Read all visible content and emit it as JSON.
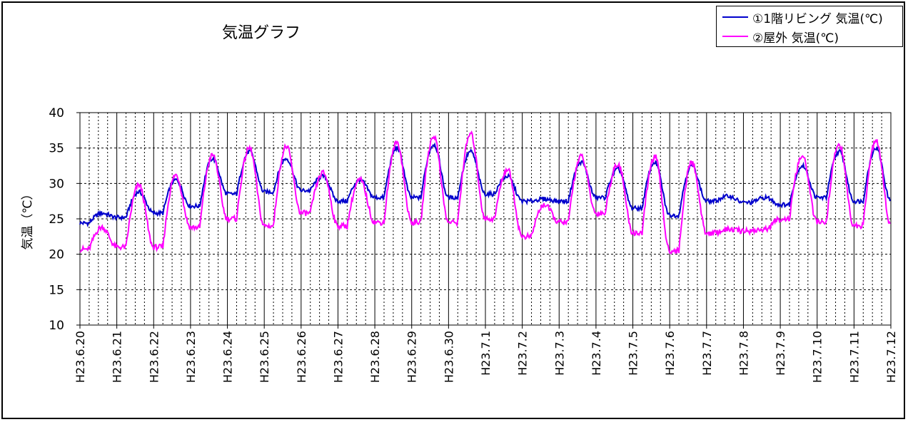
{
  "chart_data": {
    "type": "line",
    "title": "気温グラフ",
    "ylabel": "気温（℃）",
    "xlabel": "",
    "ylim": [
      10,
      40
    ],
    "yticks": [
      10,
      15,
      20,
      25,
      30,
      35,
      40
    ],
    "grid": true,
    "legend_position": "top-right",
    "categories": [
      "H23.6.20",
      "H23.6.21",
      "H23.6.22",
      "H23.6.23",
      "H23.6.24",
      "H23.6.25",
      "H23.6.26",
      "H23.6.27",
      "H23.6.28",
      "H23.6.29",
      "H23.6.30",
      "H23.7.1",
      "H23.7.2",
      "H23.7.3",
      "H23.7.4",
      "H23.7.5",
      "H23.7.6",
      "H23.7.7",
      "H23.7.8",
      "H23.7.9",
      "H23.7.10",
      "H23.7.11",
      "H23.7.12"
    ],
    "series": [
      {
        "name": "①1階リビング 気温(℃)",
        "color": "#0000cc",
        "day_min": [
          24.4,
          25.2,
          25.8,
          26.8,
          28.5,
          28.8,
          29.0,
          27.5,
          28.0,
          28.0,
          28.0,
          28.5,
          27.5,
          27.5,
          28.0,
          26.5,
          25.5,
          27.5,
          27.3,
          27.0,
          28.0,
          27.5
        ],
        "day_max": [
          25.8,
          28.8,
          30.5,
          33.5,
          34.5,
          33.5,
          31.0,
          30.5,
          35.0,
          35.5,
          34.5,
          31.0,
          27.8,
          33.0,
          32.0,
          33.0,
          32.5,
          28.2,
          28.0,
          32.5,
          34.5,
          35.0
        ]
      },
      {
        "name": "②屋外 気温(℃)",
        "color": "#ff00ff",
        "day_min": [
          20.7,
          21.0,
          21.0,
          23.8,
          25.0,
          24.0,
          25.8,
          24.0,
          24.5,
          24.5,
          24.5,
          25.0,
          22.5,
          24.5,
          25.8,
          23.0,
          20.5,
          23.0,
          23.3,
          25.0,
          24.5,
          24.0
        ],
        "day_max": [
          23.8,
          29.8,
          31.2,
          34.0,
          35.0,
          35.2,
          31.5,
          30.5,
          35.8,
          36.7,
          37.0,
          32.0,
          27.0,
          33.8,
          32.8,
          33.8,
          33.0,
          23.5,
          23.5,
          33.8,
          35.5,
          36.0
        ]
      }
    ]
  }
}
